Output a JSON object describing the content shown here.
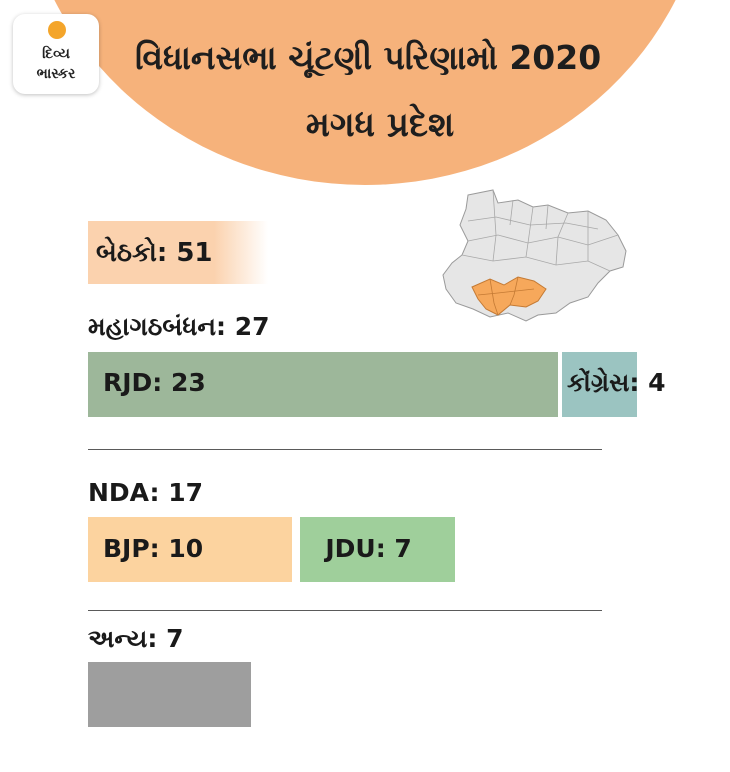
{
  "header": {
    "logo_line1": "દિવ્ય",
    "logo_line2": "ભાસ્કર",
    "title": "વિધાનસભા ચૂંટણી પરિણામો 2020",
    "subtitle": "મગધ પ્રદેશ"
  },
  "seats_label": "બેઠકો: 51",
  "colors": {
    "header_bg": "#f6b27b",
    "rjd": "#9db79a",
    "congress": "#9bc4c1",
    "bjp": "#fcd39f",
    "jdu": "#9fcf9b",
    "others": "#9e9e9e",
    "highlight_region": "#f6a85b",
    "map_region": "#e6e6e6"
  },
  "chart_data": {
    "type": "bar",
    "total": 51,
    "groups": [
      {
        "label": "મહાગઠબંધન: 27",
        "total": 27,
        "series": [
          {
            "name": "RJD",
            "value": 23,
            "label": "RJD: 23"
          },
          {
            "name": "કોંગ્રેસ",
            "value": 4,
            "label": "કોંગ્રેસ: 4"
          }
        ]
      },
      {
        "label": "NDA: 17",
        "total": 17,
        "series": [
          {
            "name": "BJP",
            "value": 10,
            "label": "BJP: 10"
          },
          {
            "name": "JDU",
            "value": 7,
            "label": "JDU: 7"
          }
        ]
      },
      {
        "label": "અન્ય: 7",
        "total": 7,
        "series": [
          {
            "name": "અન્ય",
            "value": 7,
            "label": ""
          }
        ]
      }
    ]
  }
}
